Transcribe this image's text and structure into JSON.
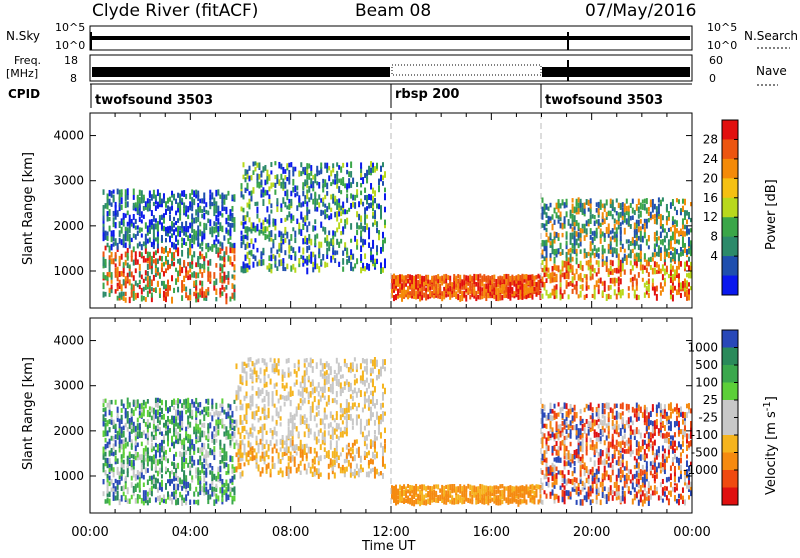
{
  "header": {
    "station": "Clyde River (fitACF)",
    "beam": "Beam 08",
    "date": "07/May/2016"
  },
  "params": {
    "nsky_label": "N.Sky",
    "nsearch_label": "N.Search",
    "freq_label_1": "Freq.",
    "freq_label_2": "[MHz]",
    "nave_label": "Nave",
    "cpid_label": "CPID",
    "noise_ticks": [
      "10^5",
      "10^0"
    ],
    "freq_ticks": [
      "18",
      "8"
    ],
    "nave_ticks": [
      "60",
      "0"
    ],
    "cpid_segments": [
      {
        "name": "twofsound 3503",
        "start_hour": 0
      },
      {
        "name": "rbsp 200",
        "start_hour": 12
      },
      {
        "name": "twofsound 3503",
        "start_hour": 18
      }
    ]
  },
  "chart_data": [
    {
      "type": "heatmap",
      "quantity": "Power",
      "ylabel": "Slant Range [km]",
      "xlabel": "Time UT",
      "xlim": [
        0,
        24
      ],
      "ylim": [
        180,
        4500
      ],
      "yticks": [
        "1000",
        "2000",
        "3000",
        "4000"
      ],
      "xticks": [
        "00:00",
        "04:00",
        "08:00",
        "12:00",
        "16:00",
        "20:00",
        "00:00"
      ],
      "colorbar_label": "Power [dB]",
      "colorbar_ticks": [
        "4",
        "8",
        "12",
        "16",
        "20",
        "24",
        "28"
      ],
      "colorbar_colors": [
        "#0a18ee",
        "#1f4fae",
        "#2c8a6a",
        "#3aa648",
        "#b8d81c",
        "#f5c012",
        "#f48a08",
        "#ec5510",
        "#e2100e"
      ],
      "regions": [
        {
          "t0": 0.5,
          "t1": 5.8,
          "r0": 350,
          "r1": 2800,
          "level": "mixed"
        },
        {
          "t0": 6,
          "t1": 11.8,
          "r0": 1000,
          "r1": 3400,
          "level": "low-mid"
        },
        {
          "t0": 12,
          "t1": 18,
          "r0": 400,
          "r1": 900,
          "level": "high"
        },
        {
          "t0": 18,
          "t1": 24,
          "r0": 400,
          "r1": 2600,
          "level": "mixed"
        }
      ],
      "markers": [
        {
          "hour": 12,
          "style": "dashed"
        },
        {
          "hour": 18,
          "style": "dashed"
        }
      ]
    },
    {
      "type": "heatmap",
      "quantity": "Velocity",
      "ylabel": "Slant Range [km]",
      "xlabel": "Time UT",
      "xlim": [
        0,
        24
      ],
      "ylim": [
        180,
        4500
      ],
      "yticks": [
        "1000",
        "2000",
        "3000",
        "4000"
      ],
      "xticks": [
        "00:00",
        "04:00",
        "08:00",
        "12:00",
        "16:00",
        "20:00",
        "00:00"
      ],
      "colorbar_label": "Velocity [m s",
      "colorbar_label_sup": "-1",
      "colorbar_label_end": "]",
      "colorbar_ticks": [
        "1000",
        "500",
        "100",
        "25",
        "-25",
        "-100",
        "-500",
        "-1000"
      ],
      "colorbar_colors": [
        "#2848b8",
        "#2a8a5a",
        "#3aa84c",
        "#5cd038",
        "#c8c8c8",
        "#c8c8c8",
        "#f5b41e",
        "#f58a10",
        "#f04a10",
        "#e01010"
      ],
      "regions": [
        {
          "t0": 0.5,
          "t1": 5.8,
          "r0": 400,
          "r1": 2700,
          "level": "green-gray"
        },
        {
          "t0": 5.8,
          "t1": 11.8,
          "r0": 1000,
          "r1": 3600,
          "level": "gray-orange"
        },
        {
          "t0": 12,
          "t1": 18,
          "r0": 400,
          "r1": 800,
          "level": "orange"
        },
        {
          "t0": 18,
          "t1": 24,
          "r0": 400,
          "r1": 2600,
          "level": "red-orange"
        }
      ],
      "markers": [
        {
          "hour": 12,
          "style": "dashed"
        },
        {
          "hour": 18,
          "style": "dashed"
        }
      ]
    }
  ]
}
